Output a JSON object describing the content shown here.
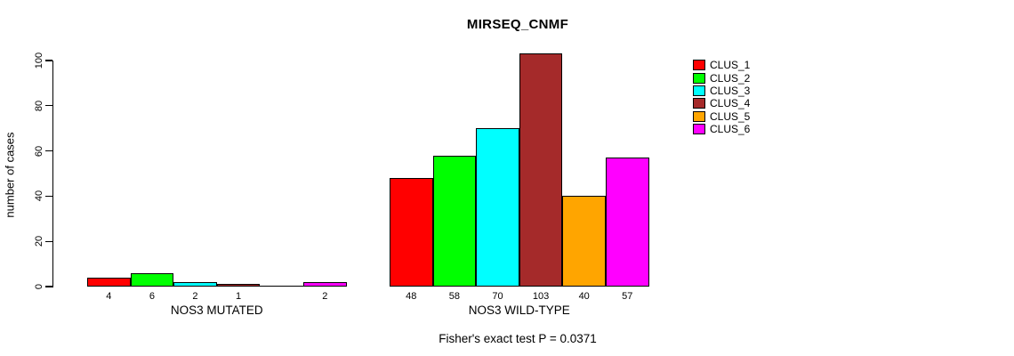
{
  "title": "MIRSEQ_CNMF",
  "chart_data": {
    "type": "bar",
    "title": "MIRSEQ_CNMF",
    "ylabel": "number of cases",
    "xlabel": "",
    "ylim": [
      0,
      100
    ],
    "yticks": [
      0,
      20,
      40,
      60,
      80,
      100
    ],
    "grid": false,
    "legend_position": "right",
    "groups": [
      {
        "label": "NOS3 MUTATED",
        "values": [
          4,
          6,
          2,
          1,
          0,
          2
        ]
      },
      {
        "label": "NOS3 WILD-TYPE",
        "values": [
          48,
          58,
          70,
          103,
          40,
          57
        ]
      }
    ],
    "series": [
      {
        "name": "CLUS_1",
        "color": "#FF0000"
      },
      {
        "name": "CLUS_2",
        "color": "#00FF00"
      },
      {
        "name": "CLUS_3",
        "color": "#00FFFF"
      },
      {
        "name": "CLUS_4",
        "color": "#A52A2A"
      },
      {
        "name": "CLUS_5",
        "color": "#FFA500"
      },
      {
        "name": "CLUS_6",
        "color": "#FF00FF"
      }
    ],
    "hide_zero_bar_labels": true,
    "annotation": "Fisher's exact test P = 0.0371"
  }
}
